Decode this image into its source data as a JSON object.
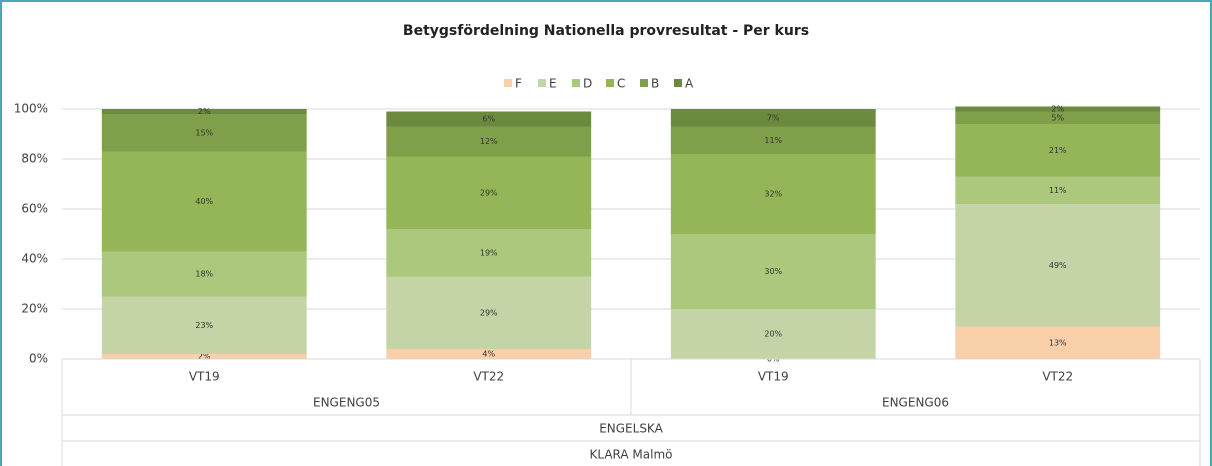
{
  "chart_data": {
    "type": "stacked_bar_percent",
    "title": "Betygsfördelning Nationella provresultat - Per kurs",
    "categories": [
      "VT19",
      "VT22",
      "VT19",
      "VT22"
    ],
    "groups": [
      "ENGENG05",
      "ENGENG06"
    ],
    "subject": "ENGELSKA",
    "school": "KLARA Malmö",
    "series": [
      {
        "name": "F",
        "color": "#f9cfaa",
        "values": [
          2,
          4,
          0,
          13
        ],
        "value_labels": [
          "2%",
          "4%",
          "0%",
          "13%"
        ]
      },
      {
        "name": "E",
        "color": "#c4d4a6",
        "values": [
          23,
          29,
          20,
          49
        ],
        "value_labels": [
          "23%",
          "29%",
          "20%",
          "49%"
        ]
      },
      {
        "name": "D",
        "color": "#abc87c",
        "values": [
          18,
          19,
          30,
          11
        ],
        "value_labels": [
          "18%",
          "19%",
          "30%",
          "11%"
        ]
      },
      {
        "name": "C",
        "color": "#94b659",
        "values": [
          40,
          29,
          32,
          21
        ],
        "value_labels": [
          "40%",
          "29%",
          "32%",
          "21%"
        ]
      },
      {
        "name": "B",
        "color": "#809f4a",
        "values": [
          15,
          12,
          11,
          5
        ],
        "value_labels": [
          "15%",
          "12%",
          "11%",
          "5%"
        ]
      },
      {
        "name": "A",
        "color": "#6c8a3d",
        "values": [
          2,
          6,
          7,
          2
        ],
        "value_labels": [
          "2%",
          "6%",
          "7%",
          "2%"
        ]
      }
    ],
    "ylim": [
      0,
      100
    ],
    "yticks": [
      {
        "value": 0,
        "label": "0%"
      },
      {
        "value": 20,
        "label": "20%"
      },
      {
        "value": 40,
        "label": "40%"
      },
      {
        "value": 60,
        "label": "60%"
      },
      {
        "value": 80,
        "label": "80%"
      },
      {
        "value": 100,
        "label": "100%"
      }
    ],
    "grid": true,
    "legend": "top"
  }
}
